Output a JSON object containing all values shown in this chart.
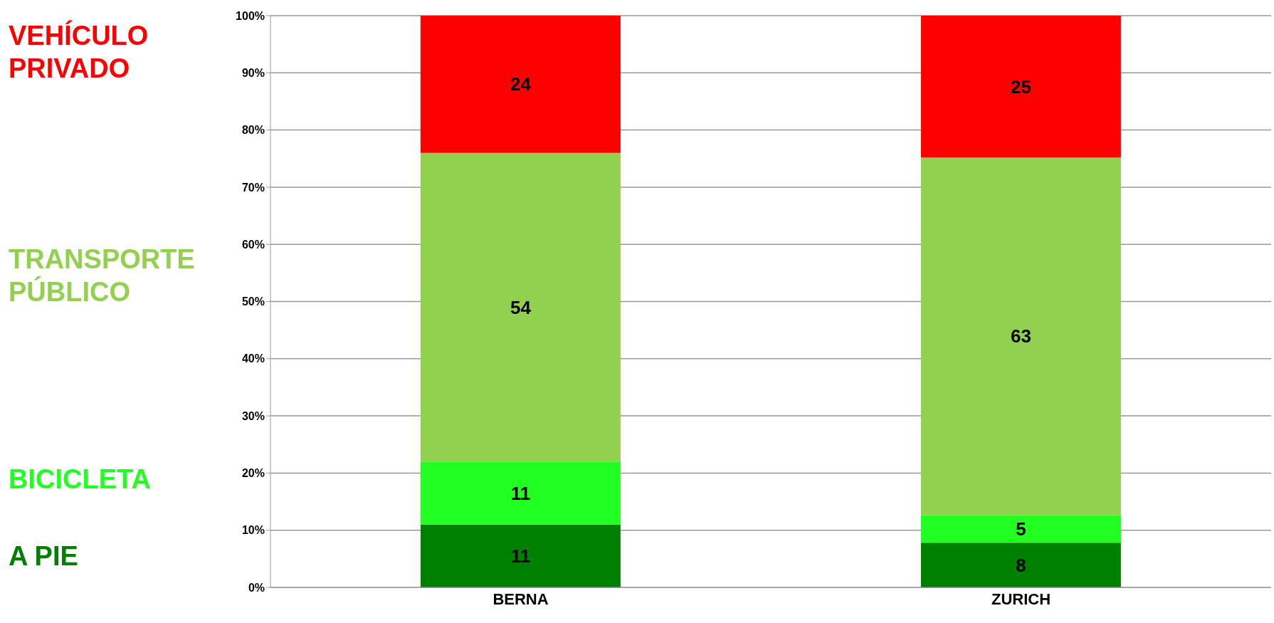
{
  "chart_data": {
    "type": "bar",
    "stacked": true,
    "categories": [
      "BERNA",
      "ZURICH"
    ],
    "series": [
      {
        "name": "A PIE",
        "color": "#008000",
        "values": [
          11,
          7.8
        ],
        "value_labels": [
          "11",
          "8"
        ]
      },
      {
        "name": "BICICLETA",
        "color": "#22ff22",
        "values": [
          11,
          4.8
        ],
        "value_labels": [
          "11",
          "5"
        ]
      },
      {
        "name": "TRANSPORTE PÚBLICO",
        "color": "#92d050",
        "values": [
          54,
          62.6
        ],
        "value_labels": [
          "54",
          "63"
        ]
      },
      {
        "name": "VEHÍCULO PRIVADO",
        "color": "#ff0000",
        "values": [
          24,
          24.8
        ],
        "value_labels": [
          "24",
          "25"
        ]
      }
    ],
    "ylim": [
      0,
      100
    ],
    "yticks": [
      {
        "value": 0,
        "label": "0%"
      },
      {
        "value": 10,
        "label": "10%"
      },
      {
        "value": 20,
        "label": "20%"
      },
      {
        "value": 30,
        "label": "30%"
      },
      {
        "value": 40,
        "label": "40%"
      },
      {
        "value": 50,
        "label": "50%"
      },
      {
        "value": 60,
        "label": "60%"
      },
      {
        "value": 70,
        "label": "70%"
      },
      {
        "value": 80,
        "label": "80%"
      },
      {
        "value": 90,
        "label": "90%"
      },
      {
        "value": 100,
        "label": "100%"
      }
    ],
    "grid": "y",
    "legend": "left"
  }
}
